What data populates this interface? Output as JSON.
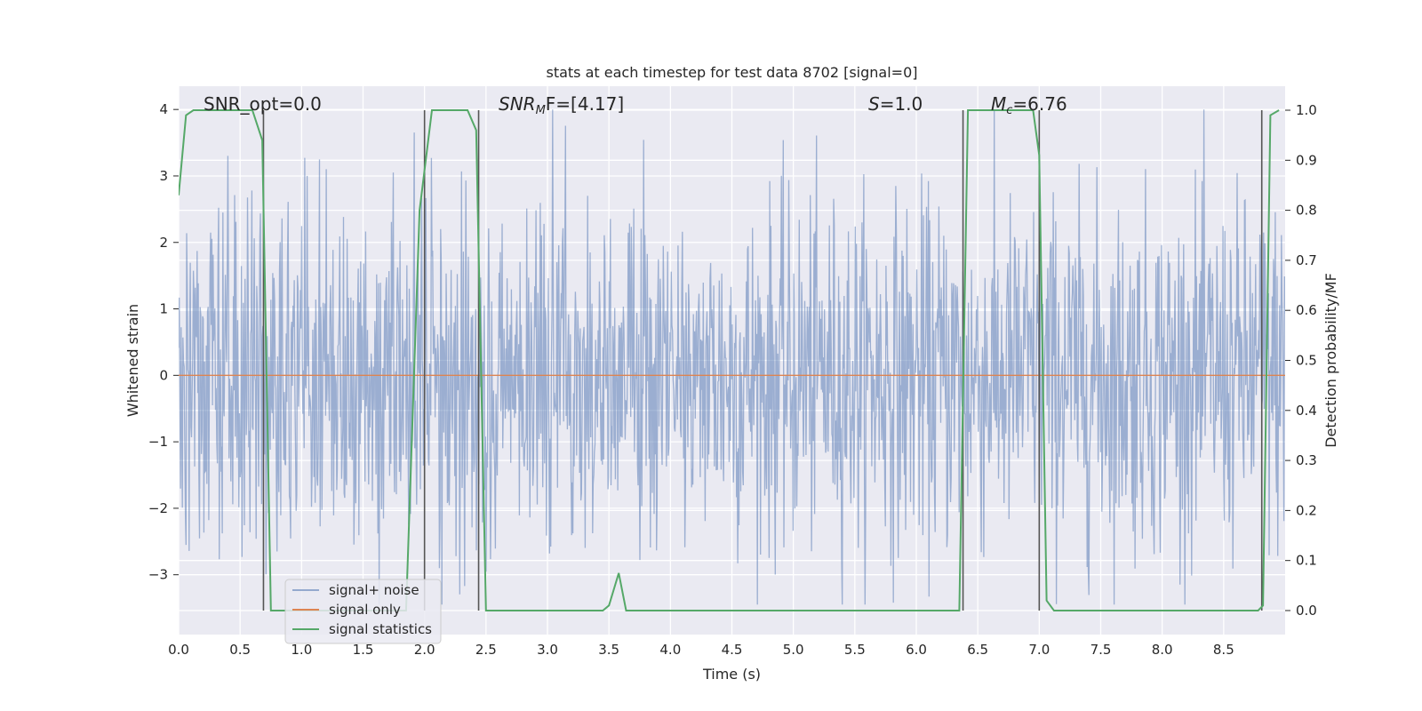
{
  "chart_data": {
    "type": "line",
    "title": "stats at each timestep for test data 8702 [signal=0]",
    "xlabel": "Time (s)",
    "ylabel": "Whitened strain",
    "y2label": "Detection probability/MF",
    "xlim": [
      0,
      9.0
    ],
    "ylim": [
      -3.9,
      4.35
    ],
    "y2lim": [
      -0.048,
      1.048
    ],
    "grid": true,
    "background": "#eaeaf2",
    "x_ticks": [
      0.0,
      0.5,
      1.0,
      1.5,
      2.0,
      2.5,
      3.0,
      3.5,
      4.0,
      4.5,
      5.0,
      5.5,
      6.0,
      6.5,
      7.0,
      7.5,
      8.0,
      8.5
    ],
    "x_tick_labels": [
      "0.0",
      "0.5",
      "1.0",
      "1.5",
      "2.0",
      "2.5",
      "3.0",
      "3.5",
      "4.0",
      "4.5",
      "5.0",
      "5.5",
      "6.0",
      "6.5",
      "7.0",
      "7.5",
      "8.0",
      "8.5"
    ],
    "y_ticks": [
      -3,
      -2,
      -1,
      0,
      1,
      2,
      3,
      4
    ],
    "y_tick_labels": [
      "−3",
      "−2",
      "−1",
      "0",
      "1",
      "2",
      "3",
      "4"
    ],
    "y2_ticks": [
      0.0,
      0.1,
      0.2,
      0.3,
      0.4,
      0.5,
      0.6,
      0.7,
      0.8,
      0.9,
      1.0
    ],
    "y2_tick_labels": [
      "0.0",
      "0.1",
      "0.2",
      "0.3",
      "0.4",
      "0.5",
      "0.6",
      "0.7",
      "0.8",
      "0.9",
      "1.0"
    ],
    "annotations": {
      "snr_opt": "SNR_opt=0.0",
      "snr_mf_label": "SNR",
      "snr_mf_sub": "M",
      "snr_mf_rest": "F=[4.17]",
      "s_label": "S",
      "s_rest": "=1.0",
      "mc_label": "M",
      "mc_sub": "c",
      "mc_rest": "=6.76"
    },
    "legend": {
      "placement": "lower-left",
      "entries": [
        "signal+ noise",
        "signal only",
        "signal statistics"
      ]
    },
    "series": [
      {
        "name": "signal+ noise",
        "color": "#4c72b0",
        "style": "dense noise, amplitude about 1.3",
        "noise_std": 1.3,
        "n_samples": 1800,
        "x_range": [
          0,
          9.0
        ],
        "clip": [
          -3.45,
          4.0
        ]
      },
      {
        "name": "signal only",
        "color": "#dd8452",
        "x": [
          0,
          9.0
        ],
        "y": [
          0,
          0
        ]
      },
      {
        "name": "signal statistics",
        "color": "#55a868",
        "axis": "y2",
        "x": [
          0.0,
          0.06,
          0.12,
          0.3,
          0.6,
          0.68,
          0.75,
          1.85,
          1.96,
          2.06,
          2.35,
          2.42,
          2.5,
          2.58,
          3.45,
          3.5,
          3.58,
          3.64,
          6.35,
          6.42,
          6.95,
          7.0,
          7.06,
          7.12,
          8.78,
          8.82,
          8.88,
          8.95
        ],
        "y": [
          0.83,
          0.99,
          1.0,
          1.0,
          1.0,
          0.94,
          0.0,
          0.0,
          0.8,
          1.0,
          1.0,
          0.96,
          0.0,
          0.0,
          0.0,
          0.01,
          0.075,
          0.0,
          0.0,
          1.0,
          1.0,
          0.91,
          0.02,
          0.0,
          0.0,
          0.01,
          0.99,
          1.0
        ]
      }
    ],
    "vertical_markers": {
      "color": "#555555",
      "x": [
        0.69,
        2.0,
        2.44,
        6.38,
        7.0,
        8.81
      ]
    }
  }
}
